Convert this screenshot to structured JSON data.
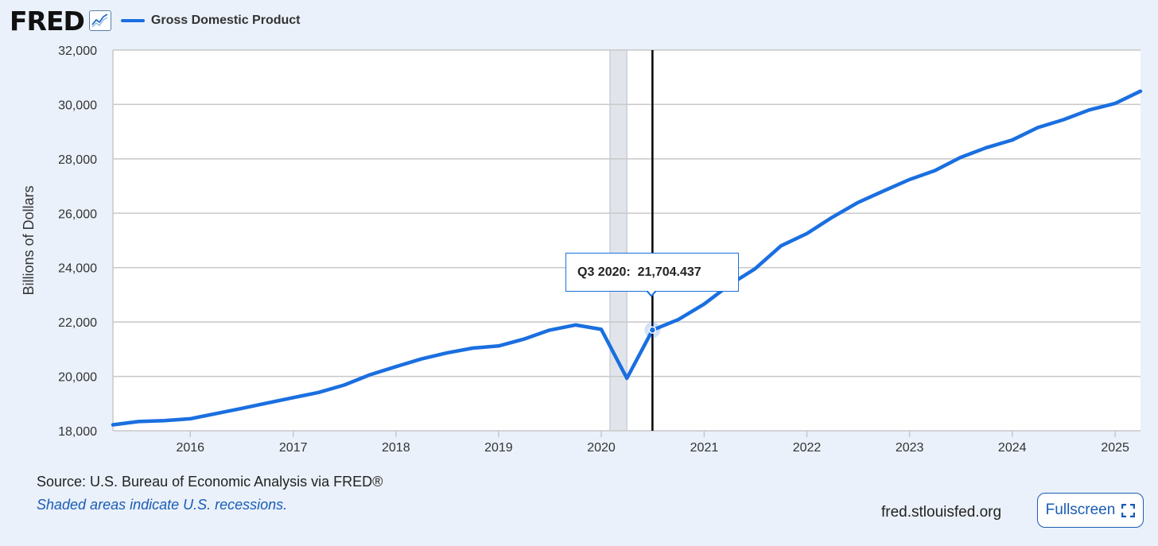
{
  "header": {
    "logo_text": "FRED",
    "logo_icon": "line-graph-icon",
    "legend_label": "Gross Domestic Product"
  },
  "colors": {
    "series": "#1a6fe0",
    "background": "#eaf1fa",
    "plot_background": "#ffffff",
    "grid": "#c8c8c8",
    "recession": "#e1e5eb",
    "link": "#1a5cb5"
  },
  "chart_data": {
    "type": "line",
    "ylabel": "Billions of Dollars",
    "xlabel": "",
    "ylim": [
      18000,
      32000
    ],
    "xlim": [
      "2015-04-01",
      "2025-04-01"
    ],
    "y_ticks": [
      "18,000",
      "20,000",
      "22,000",
      "24,000",
      "26,000",
      "28,000",
      "30,000",
      "32,000"
    ],
    "y_tick_values": [
      18000,
      20000,
      22000,
      24000,
      26000,
      28000,
      30000,
      32000
    ],
    "x_ticks": [
      "2016",
      "2017",
      "2018",
      "2019",
      "2020",
      "2021",
      "2022",
      "2023",
      "2024",
      "2025"
    ],
    "grid": true,
    "recession_shading": [
      {
        "start": "2020-02-01",
        "end": "2020-04-01"
      }
    ],
    "series": [
      {
        "name": "Gross Domestic Product",
        "x": [
          "2015-04-01",
          "2015-07-01",
          "2015-10-01",
          "2016-01-01",
          "2016-04-01",
          "2016-07-01",
          "2016-10-01",
          "2017-01-01",
          "2017-04-01",
          "2017-07-01",
          "2017-10-01",
          "2018-01-01",
          "2018-04-01",
          "2018-07-01",
          "2018-10-01",
          "2019-01-01",
          "2019-04-01",
          "2019-07-01",
          "2019-10-01",
          "2020-01-01",
          "2020-04-01",
          "2020-07-01",
          "2020-10-01",
          "2021-01-01",
          "2021-04-01",
          "2021-07-01",
          "2021-10-01",
          "2022-01-01",
          "2022-04-01",
          "2022-07-01",
          "2022-10-01",
          "2023-01-01",
          "2023-04-01",
          "2023-07-01",
          "2023-10-01",
          "2024-01-01",
          "2024-04-01",
          "2024-07-01",
          "2024-10-01",
          "2025-01-01",
          "2025-04-01"
        ],
        "values": [
          18220,
          18340,
          18370,
          18440,
          18630,
          18820,
          19020,
          19220,
          19410,
          19680,
          20060,
          20360,
          20640,
          20860,
          21040,
          21120,
          21370,
          21700,
          21890,
          21730,
          19930,
          21704.437,
          22090,
          22660,
          23370,
          23960,
          24800,
          25250,
          25850,
          26390,
          26820,
          27240,
          27570,
          28050,
          28410,
          28690,
          29150,
          29440,
          29800,
          30040,
          30490
        ]
      }
    ],
    "tooltip": {
      "label": "Q3 2020:",
      "value": "21,704.437",
      "x": "2020-07-01",
      "y": 21704.437
    }
  },
  "footer": {
    "source": "Source: U.S. Bureau of Economic Analysis via FRED®",
    "note": "Shaded areas indicate U.S. recessions.",
    "site": "fred.stlouisfed.org",
    "fullscreen_label": "Fullscreen",
    "fullscreen_icon": "expand-icon"
  }
}
